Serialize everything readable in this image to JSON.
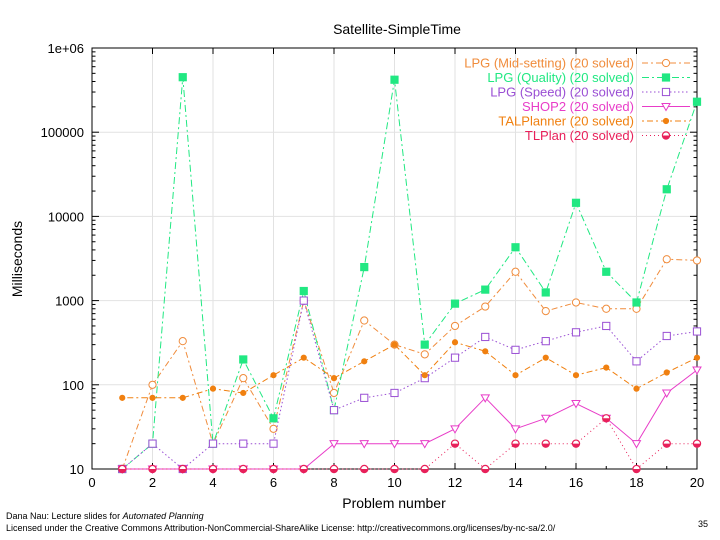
{
  "chart_data": {
    "type": "line",
    "title": "Satellite-SimpleTime",
    "xlabel": "Problem number",
    "ylabel": "Milliseconds",
    "xlim": [
      0,
      20
    ],
    "ylim": [
      10,
      1000000
    ],
    "yscale": "log",
    "xticks": [
      "0",
      "2",
      "4",
      "6",
      "8",
      "10",
      "12",
      "14",
      "16",
      "18",
      "20"
    ],
    "yticks": [
      "10",
      "100",
      "1000",
      "10000",
      "100000",
      "1e+06"
    ],
    "legend_position": "top-right",
    "x": [
      1,
      2,
      3,
      4,
      5,
      6,
      7,
      8,
      9,
      10,
      11,
      12,
      13,
      14,
      15,
      16,
      17,
      18,
      19,
      20
    ],
    "series": [
      {
        "name": "LPG (Mid-setting) (20 solved)",
        "color": "#f08c3c",
        "marker": "circle-open",
        "dash": "6,3,2,3",
        "values": [
          10,
          100,
          330,
          20,
          120,
          30,
          1000,
          80,
          580,
          300,
          230,
          500,
          850,
          2200,
          750,
          950,
          800,
          800,
          3100,
          3000
        ]
      },
      {
        "name": "LPG (Quality) (20 solved)",
        "color": "#21e882",
        "marker": "square-filled",
        "dash": "7,3,2,3",
        "values": [
          10,
          20,
          450000,
          20,
          200,
          40,
          1300,
          50,
          2500,
          420000,
          300,
          920,
          1350,
          4300,
          1250,
          14500,
          2200,
          950,
          21000,
          230000
        ]
      },
      {
        "name": "LPG (Speed) (20 solved)",
        "color": "#9a4fd4",
        "marker": "square-open",
        "dash": "1.5,2.5",
        "values": [
          10,
          20,
          10,
          20,
          20,
          20,
          1000,
          50,
          70,
          80,
          120,
          210,
          370,
          260,
          330,
          420,
          500,
          190,
          380,
          430
        ]
      },
      {
        "name": "SHOP2 (20 solved)",
        "color": "#e83cc8",
        "marker": "triangle-down",
        "dash": "",
        "values": [
          10,
          10,
          10,
          10,
          10,
          10,
          10,
          20,
          20,
          20,
          20,
          30,
          70,
          30,
          40,
          60,
          40,
          20,
          80,
          150
        ]
      },
      {
        "name": "TALPlanner (20 solved)",
        "color": "#f08010",
        "marker": "dot",
        "dash": "2,3,6,3",
        "values": [
          70,
          70,
          70,
          90,
          80,
          130,
          210,
          120,
          190,
          300,
          130,
          320,
          250,
          130,
          210,
          130,
          160,
          90,
          140,
          210
        ]
      },
      {
        "name": "TLPlan (20 solved)",
        "color": "#e8205a",
        "marker": "circle-half",
        "dash": "1,3",
        "values": [
          10,
          10,
          10,
          10,
          10,
          10,
          10,
          10,
          10,
          10,
          10,
          20,
          10,
          20,
          20,
          20,
          40,
          10,
          20,
          20
        ]
      }
    ]
  },
  "footer": {
    "line1_prefix": "Dana Nau: Lecture slides for ",
    "line1_title": "Automated Planning",
    "line2": "Licensed under the Creative Commons Attribution-NonCommercial-ShareAlike License: http://creativecommons.org/licenses/by-nc-sa/2.0/",
    "slide_number": "35"
  }
}
